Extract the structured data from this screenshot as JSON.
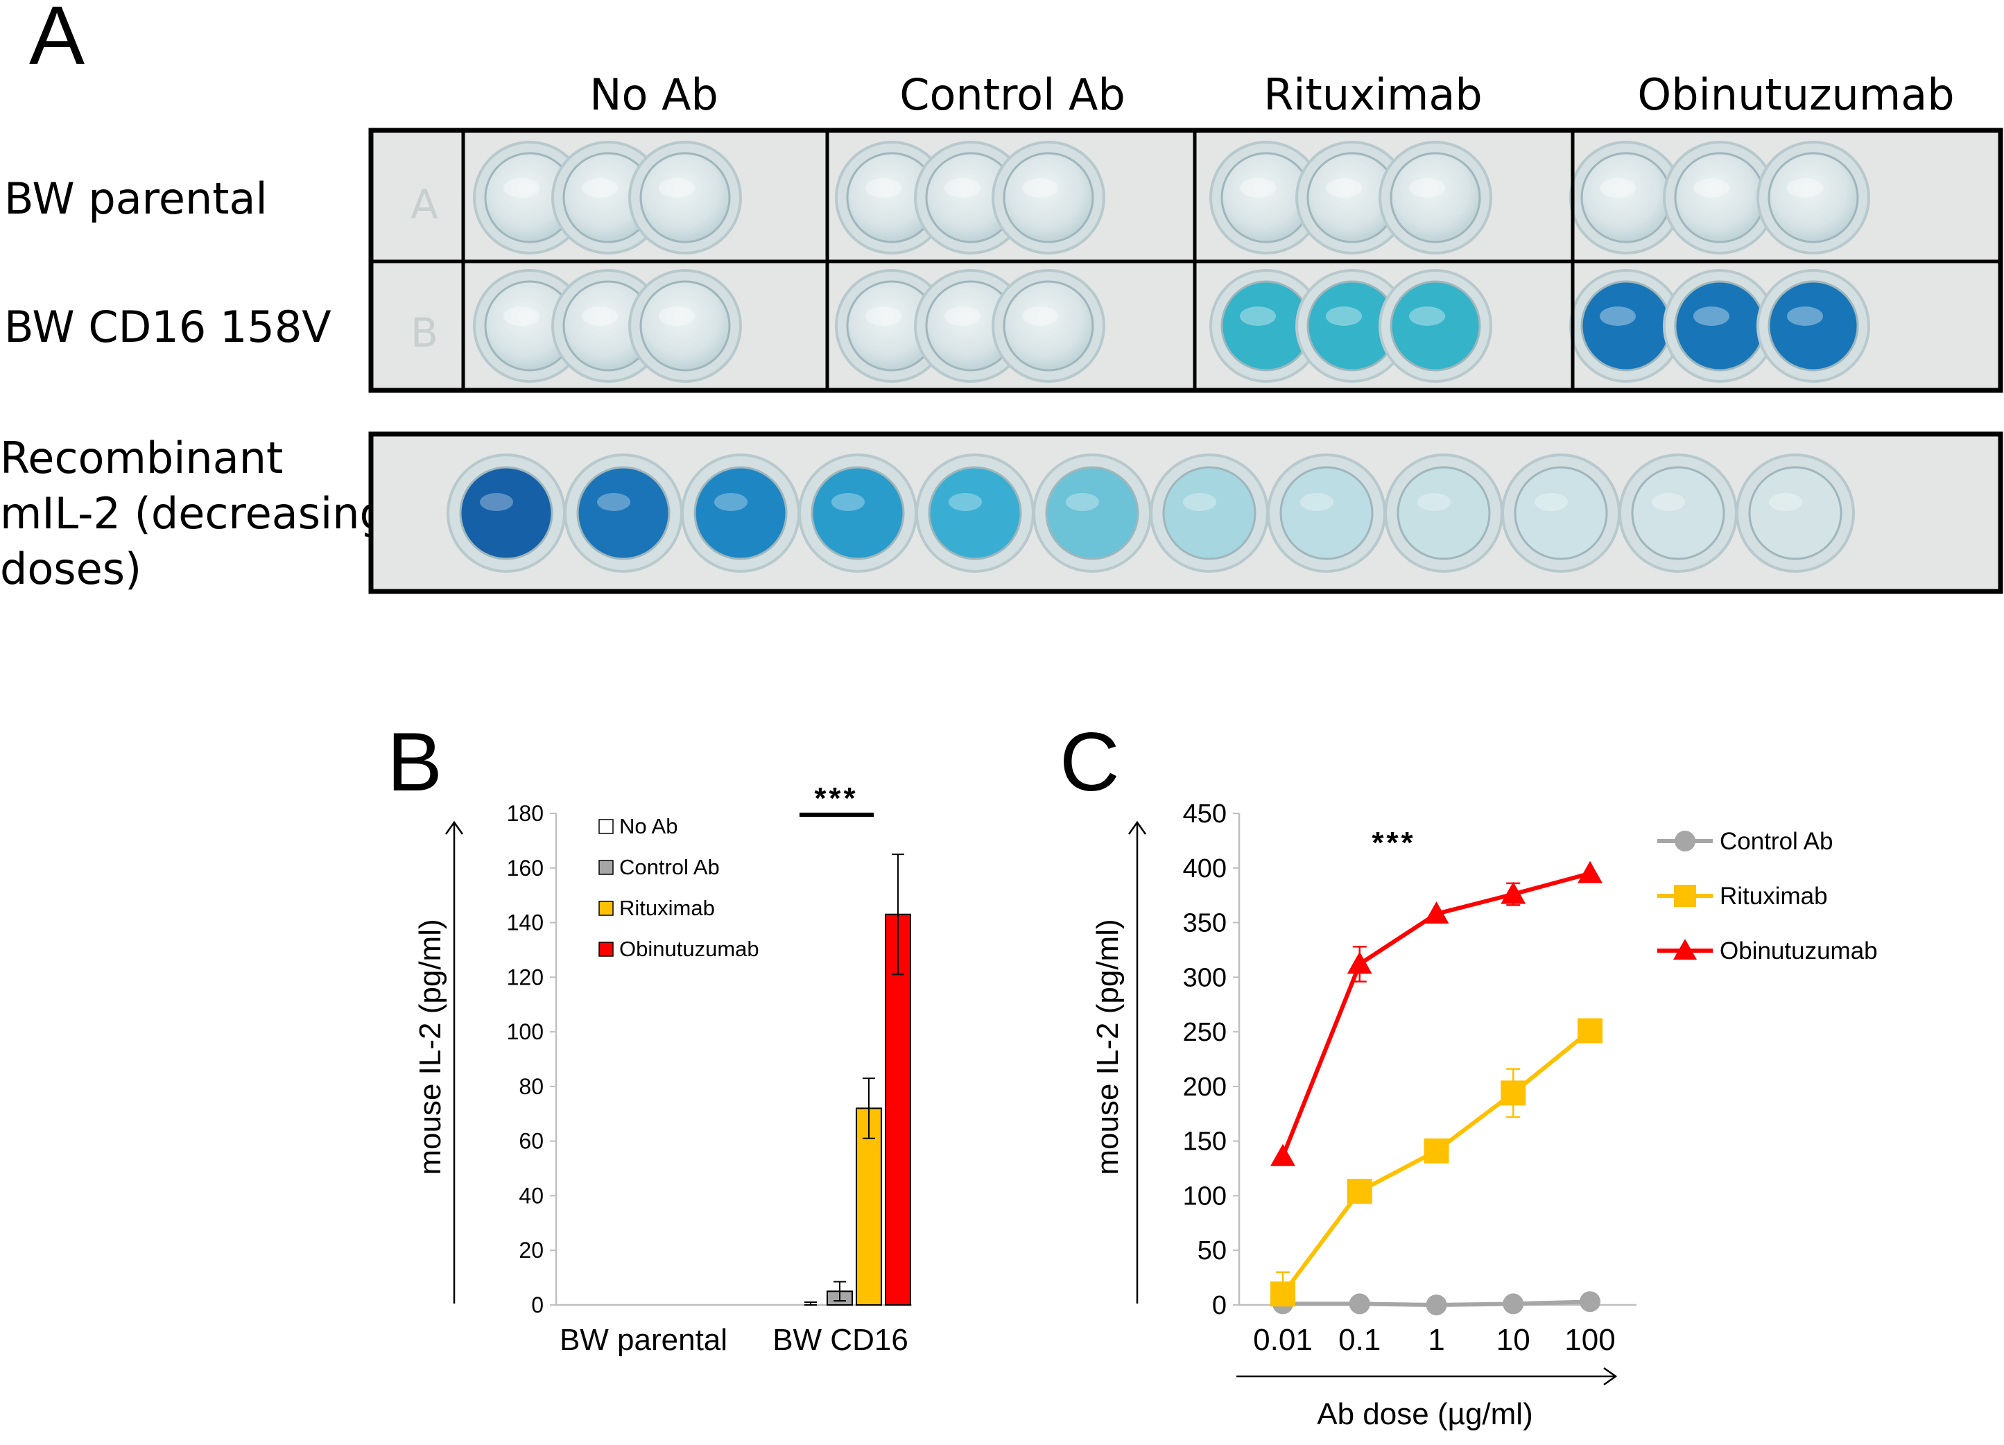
{
  "panel_a": {
    "letter": "A",
    "columns": [
      "No Ab",
      "Control Ab",
      "Rituximab",
      "Obinutuzumab"
    ],
    "rows": [
      "BW parental",
      "BW CD16 158V"
    ],
    "recombinant_label": [
      "Recombinant",
      "mIL-2 (decreasing",
      "doses)"
    ],
    "plate_row_letters": [
      "A",
      "B"
    ],
    "well_colors": {
      "clear": "#d6e3e6",
      "rituximab": "#35b3c9",
      "obinutuzumab": "#1876b8",
      "plate": "#e3e6e4"
    },
    "recombinant_wells": [
      "#1660a8",
      "#1b74b8",
      "#1f86c4",
      "#2a9ccc",
      "#3aaed2",
      "#6cc2d6",
      "#a6d6df",
      "#bcdde3",
      "#c6e0e4",
      "#cde2e6",
      "#d1e3e6",
      "#d4e4e6"
    ]
  },
  "chart_data": [
    {
      "panel": "B",
      "type": "bar",
      "ylabel": "mouse IL-2 (pg/ml)",
      "ylim": [
        0,
        180
      ],
      "yticks": [
        "0",
        "20",
        "40",
        "60",
        "80",
        "100",
        "120",
        "140",
        "160",
        "180"
      ],
      "categories": [
        "BW parental",
        "BW CD16"
      ],
      "series": [
        {
          "name": "No Ab",
          "color": "#ffffff",
          "values": [
            0,
            0.5
          ],
          "errors": [
            0,
            0.5
          ]
        },
        {
          "name": "Control Ab",
          "color": "#a6a6a6",
          "values": [
            0,
            5
          ],
          "errors": [
            0,
            3.5
          ]
        },
        {
          "name": "Rituximab",
          "color": "#ffc000",
          "values": [
            0,
            72
          ],
          "errors": [
            0,
            11
          ]
        },
        {
          "name": "Obinutuzumab",
          "color": "#ff0000",
          "values": [
            0,
            143
          ],
          "errors": [
            0,
            22
          ]
        }
      ],
      "significance": "***",
      "legend": "top-left"
    },
    {
      "panel": "C",
      "type": "line",
      "ylabel": "mouse IL-2 (pg/ml)",
      "xlabel": "Ab dose (µg/ml)",
      "x": [
        "0.01",
        "0.1",
        "1",
        "10",
        "100"
      ],
      "ylim": [
        0,
        450
      ],
      "yticks": [
        "0",
        "50",
        "100",
        "150",
        "200",
        "250",
        "300",
        "350",
        "400",
        "450"
      ],
      "series": [
        {
          "name": "Control Ab",
          "color": "#a6a6a6",
          "marker": "circle",
          "values": [
            1,
            1,
            0,
            1,
            3
          ],
          "errors": [
            0,
            0,
            0,
            0,
            0
          ]
        },
        {
          "name": "Rituximab",
          "color": "#ffc000",
          "marker": "square",
          "values": [
            10,
            104,
            141,
            194,
            251
          ],
          "errors": [
            20,
            0,
            0,
            22,
            0
          ]
        },
        {
          "name": "Obinutuzumab",
          "color": "#ff0000",
          "marker": "triangle",
          "values": [
            136,
            312,
            358,
            376,
            395
          ],
          "errors": [
            0,
            16,
            0,
            10,
            0
          ]
        }
      ],
      "significance": "***",
      "legend": "right"
    }
  ]
}
